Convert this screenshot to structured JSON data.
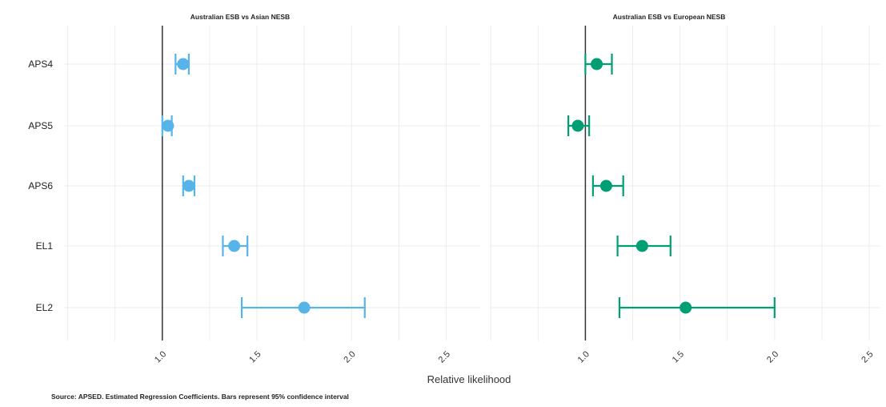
{
  "chart_data": {
    "type": "scatter",
    "subtype": "forest-plot-with-error-bars",
    "xlabel": "Relative likelihood",
    "categories": [
      "APS4",
      "APS5",
      "APS6",
      "EL1",
      "EL2"
    ],
    "panels": [
      {
        "title": "Australian ESB vs Asian NESB",
        "color": "#56B4E9",
        "reference_line": 1.0,
        "xlim": [
          0.5,
          2.1
        ],
        "ticks": [
          "1.0",
          "1.5",
          "2.0",
          "2.5"
        ],
        "tick_values": [
          1.0,
          1.5,
          2.0,
          2.5
        ],
        "points": [
          {
            "category": "APS4",
            "estimate": 1.11,
            "low": 1.07,
            "high": 1.14
          },
          {
            "category": "APS5",
            "estimate": 1.03,
            "low": 1.0,
            "high": 1.05
          },
          {
            "category": "APS6",
            "estimate": 1.14,
            "low": 1.11,
            "high": 1.17
          },
          {
            "category": "EL1",
            "estimate": 1.38,
            "low": 1.32,
            "high": 1.45
          },
          {
            "category": "EL2",
            "estimate": 1.75,
            "low": 1.42,
            "high": 2.07
          }
        ]
      },
      {
        "title": "Australian ESB vs European NESB",
        "color": "#009E73",
        "reference_line": 1.0,
        "xlim": [
          0.6,
          2.6
        ],
        "ticks": [
          "1.0",
          "1.5",
          "2.0",
          "2.5"
        ],
        "tick_values": [
          1.0,
          1.5,
          2.0,
          2.5
        ],
        "points": [
          {
            "category": "APS4",
            "estimate": 1.06,
            "low": 1.0,
            "high": 1.14
          },
          {
            "category": "APS5",
            "estimate": 0.96,
            "low": 0.91,
            "high": 1.02
          },
          {
            "category": "APS6",
            "estimate": 1.11,
            "low": 1.04,
            "high": 1.2
          },
          {
            "category": "EL1",
            "estimate": 1.3,
            "low": 1.17,
            "high": 1.45
          },
          {
            "category": "EL2",
            "estimate": 1.53,
            "low": 1.18,
            "high": 2.0
          }
        ]
      }
    ],
    "grid": true,
    "source": "Source: APSED. Estimated Regression Coefficients. Bars represent 95% confidence interval"
  }
}
